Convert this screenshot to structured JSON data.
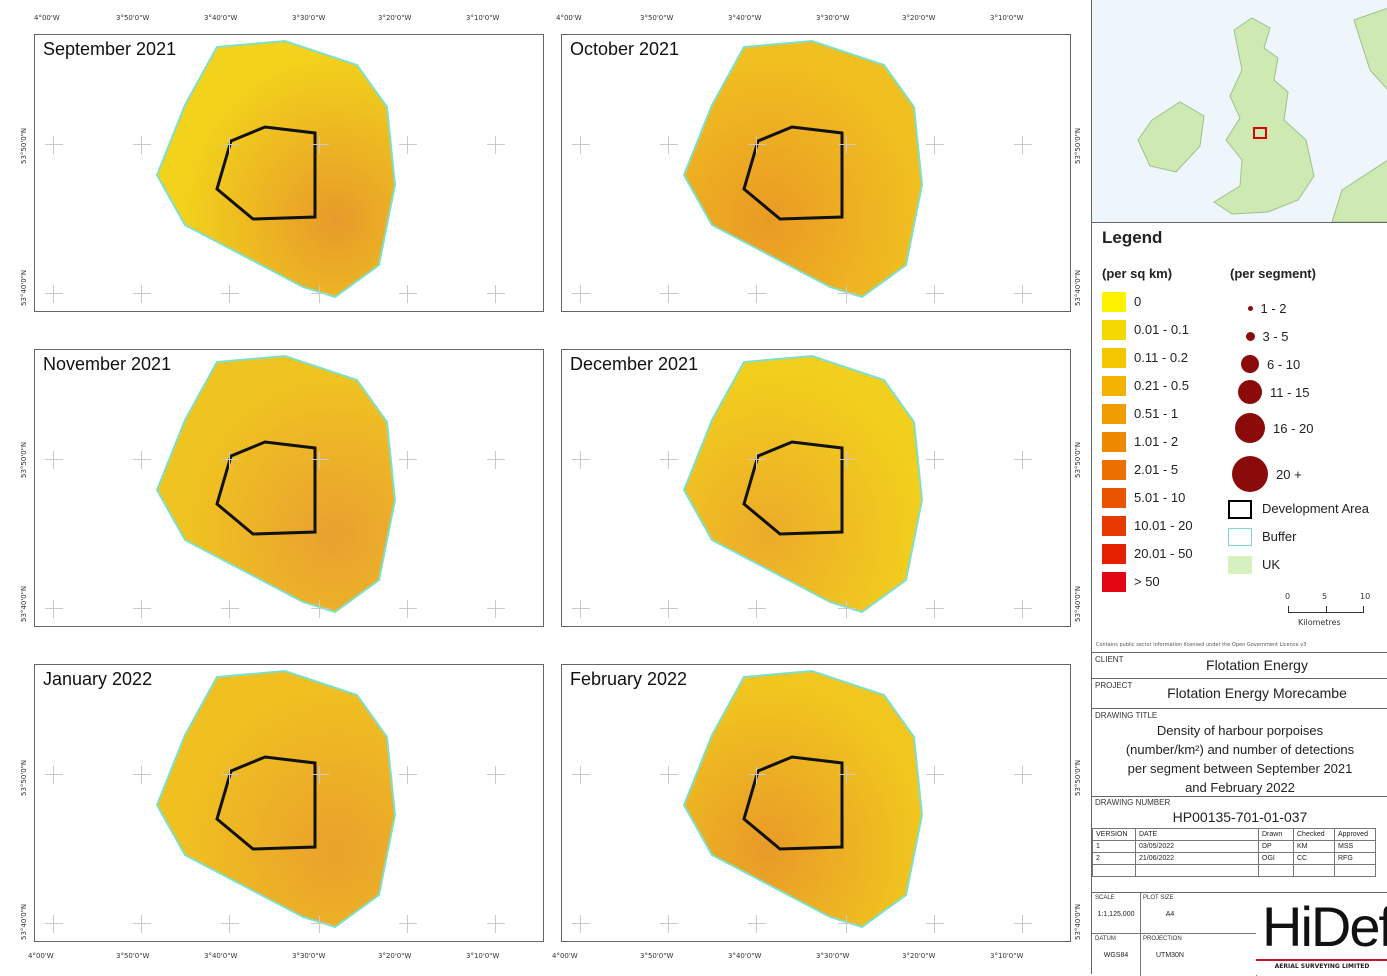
{
  "axes": {
    "top_lon": [
      "4°00'W",
      "3°50'0\"W",
      "3°40'0\"W",
      "3°30'0\"W",
      "3°20'0\"W",
      "3°10'0\"W"
    ],
    "bottom_lon": [
      "4°00'W",
      "3°50'0\"W",
      "3°40'0\"W",
      "3°30'0\"W",
      "3°20'0\"W",
      "3°10'0\"W"
    ],
    "left_lat": [
      "53°50'0\"N",
      "53°40'0\"N"
    ]
  },
  "panels": [
    {
      "title": "September 2021",
      "base_color": "#f2d21b"
    },
    {
      "title": "October 2021",
      "base_color": "#f0c020"
    },
    {
      "title": "November 2021",
      "base_color": "#f0c420"
    },
    {
      "title": "December 2021",
      "base_color": "#f2cf1c"
    },
    {
      "title": "January 2022",
      "base_color": "#f0c020"
    },
    {
      "title": "February 2022",
      "base_color": "#f1c61e"
    }
  ],
  "legend": {
    "title": "Legend",
    "density_header": "(per sq km)",
    "density_classes": [
      {
        "label": "0",
        "color": "#fff200"
      },
      {
        "label": "0.01 - 0.1",
        "color": "#f5d800"
      },
      {
        "label": "0.11 - 0.2",
        "color": "#f3c600"
      },
      {
        "label": "0.21 - 0.5",
        "color": "#f1b200"
      },
      {
        "label": "0.51 - 1",
        "color": "#ef9d00"
      },
      {
        "label": "1.01 - 2",
        "color": "#ed8800"
      },
      {
        "label": "2.01 - 5",
        "color": "#eb7000"
      },
      {
        "label": "5.01 - 10",
        "color": "#e95400"
      },
      {
        "label": "10.01 - 20",
        "color": "#e73a00"
      },
      {
        "label": "20.01 - 50",
        "color": "#e52000"
      },
      {
        "label": "> 50",
        "color": "#e30613"
      }
    ],
    "segment_header": "(per segment)",
    "segment_classes": [
      {
        "label": "1 - 2"
      },
      {
        "label": "3 - 5"
      },
      {
        "label": "6 - 10"
      },
      {
        "label": "11 - 15"
      },
      {
        "label": "16 - 20"
      },
      {
        "label": "20 +"
      }
    ],
    "development_area": "Development Area",
    "buffer": "Buffer",
    "uk": "UK",
    "scale_ticks": [
      "0",
      "5",
      "10"
    ],
    "scale_unit": "Kilometres",
    "licence": "Contains public sector information licensed under the Open Government Licence v3"
  },
  "title_block": {
    "client_label": "CLIENT",
    "client": "Flotation Energy",
    "project_label": "PROJECT",
    "project": "Flotation Energy Morecambe",
    "drawing_title_label": "DRAWING TITLE",
    "drawing_title": [
      "Density of harbour porpoises",
      "(number/km²) and number of detections",
      "per segment between September 2021",
      "and February 2022"
    ],
    "drawing_number_label": "DRAWING NUMBER",
    "drawing_number": "HP00135-701-01-037",
    "version_headers": [
      "VERSION",
      "DATE",
      "Drawn",
      "Checked",
      "Approved"
    ],
    "versions": [
      [
        "1",
        "03/05/2022",
        "DP",
        "KM",
        "MSS"
      ],
      [
        "2",
        "21/06/2022",
        "OGI",
        "CC",
        "RFG"
      ]
    ],
    "scale_label": "SCALE",
    "scale": "1:1,125,000",
    "plot_size_label": "PLOT SIZE",
    "plot_size": "A4",
    "datum_label": "DATUM",
    "datum": "WGS84",
    "projection_label": "PROJECTION",
    "projection": "UTM30N",
    "logo": "HiDef",
    "logo_sub": "AERIAL SURVEYING LIMITED"
  }
}
